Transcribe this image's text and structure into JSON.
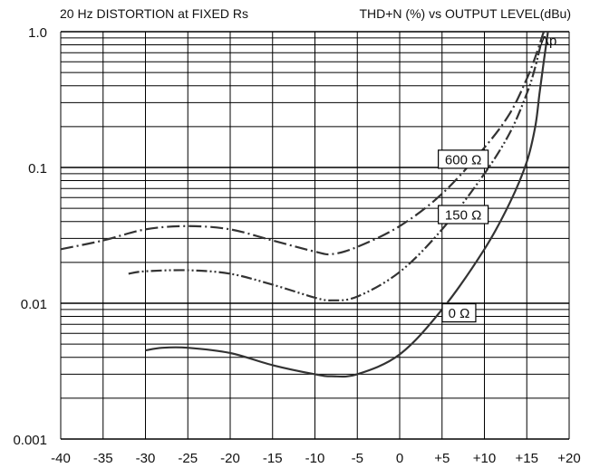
{
  "chart_data": {
    "type": "line",
    "title_left": "20 Hz DISTORTION at FIXED Rs",
    "title_right": "THD+N (%) vs OUTPUT LEVEL(dBu)",
    "y_scale": "log",
    "grid": true,
    "xlim": [
      -40,
      20
    ],
    "ylim": [
      0.001,
      1.0
    ],
    "x_ticks": [
      -40,
      -35,
      -30,
      -25,
      -20,
      -15,
      -10,
      -5,
      0,
      5,
      10,
      15,
      20
    ],
    "x_tick_labels": [
      "-40",
      "-35",
      "-30",
      "-25",
      "-20",
      "-15",
      "-10",
      "-5",
      "0",
      "+5",
      "+10",
      "+15",
      "+20"
    ],
    "y_ticks": [
      0.001,
      0.01,
      0.1,
      1.0
    ],
    "y_tick_labels": [
      "0.001",
      "0.01",
      "0.1",
      "1.0"
    ],
    "corner_annotation": "Δp",
    "series": [
      {
        "name": "600 Ω",
        "style": "dash-dot",
        "x": [
          -40,
          -35,
          -30,
          -25,
          -20,
          -15,
          -10,
          -8,
          -5,
          0,
          5,
          10,
          13,
          15,
          16,
          17
        ],
        "y": [
          0.025,
          0.029,
          0.035,
          0.037,
          0.035,
          0.029,
          0.024,
          0.023,
          0.026,
          0.037,
          0.064,
          0.14,
          0.25,
          0.45,
          0.65,
          1.0
        ]
      },
      {
        "name": "150 Ω",
        "style": "dash-dot-dot",
        "x": [
          -32,
          -30,
          -25,
          -20,
          -15,
          -10,
          -8,
          -5,
          0,
          5,
          10,
          13,
          15,
          16,
          17
        ],
        "y": [
          0.0165,
          0.0172,
          0.0175,
          0.0165,
          0.0137,
          0.011,
          0.0105,
          0.0112,
          0.017,
          0.035,
          0.09,
          0.18,
          0.35,
          0.55,
          1.0
        ]
      },
      {
        "name": "0 Ω",
        "style": "solid",
        "x": [
          -30,
          -28,
          -25,
          -20,
          -15,
          -10,
          -8,
          -5,
          0,
          5,
          10,
          13,
          15,
          16,
          16.5,
          17,
          17.5
        ],
        "y": [
          0.0045,
          0.0047,
          0.0047,
          0.0043,
          0.0035,
          0.003,
          0.0029,
          0.003,
          0.0042,
          0.009,
          0.025,
          0.055,
          0.11,
          0.2,
          0.35,
          0.6,
          1.0
        ]
      }
    ],
    "series_labels": [
      {
        "text": "600 Ω",
        "x": 7.5,
        "y": 0.115
      },
      {
        "text": "150 Ω",
        "x": 7.5,
        "y": 0.045
      },
      {
        "text": "0 Ω",
        "x": 7.0,
        "y": 0.0085
      }
    ]
  }
}
